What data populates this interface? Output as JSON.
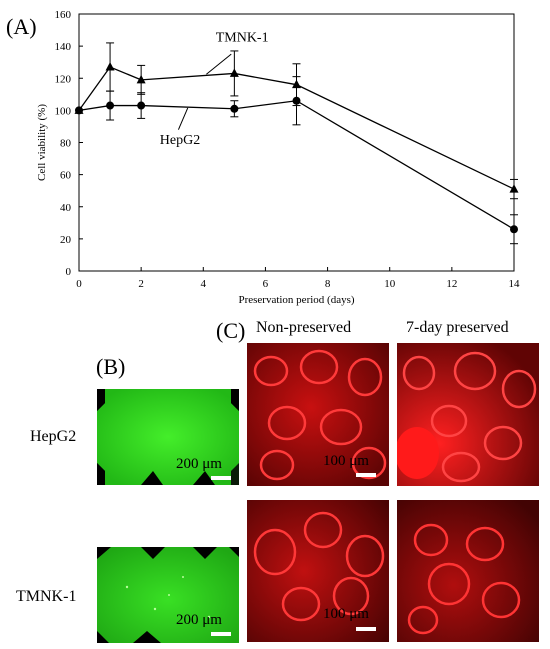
{
  "panel_labels": {
    "a": "(A)",
    "b": "(B)",
    "c": "(C)"
  },
  "chart_data": {
    "type": "line",
    "xlabel": "Preservation period (days)",
    "ylabel": "Cell viability (%)",
    "xlim": [
      0,
      14
    ],
    "ylim": [
      0,
      160
    ],
    "xticks": [
      0,
      2,
      4,
      6,
      8,
      10,
      12,
      14
    ],
    "yticks": [
      0,
      20,
      40,
      60,
      80,
      100,
      120,
      140,
      160
    ],
    "grid": false,
    "series": [
      {
        "name": "TMNK-1",
        "marker": "triangle",
        "x": [
          0,
          1,
          2,
          5,
          7,
          14
        ],
        "values": [
          100,
          127,
          119,
          123,
          116,
          51
        ],
        "errors": [
          0,
          15,
          9,
          14,
          13,
          6
        ]
      },
      {
        "name": "HepG2",
        "marker": "circle",
        "x": [
          0,
          1,
          2,
          5,
          7,
          14
        ],
        "values": [
          100,
          103,
          103,
          101,
          106,
          26
        ],
        "errors": [
          0,
          9,
          8,
          5,
          15,
          9
        ]
      }
    ]
  },
  "panel_c": {
    "col1": "Non-preserved",
    "col2": "7-day preserved"
  },
  "rows": {
    "hepg2": "HepG2",
    "tmnk1": "TMNK-1"
  },
  "scalebars": {
    "b": "200 μm",
    "c": "100 μm"
  },
  "colors": {
    "green": "#2bd11a",
    "red": "#e01010"
  }
}
